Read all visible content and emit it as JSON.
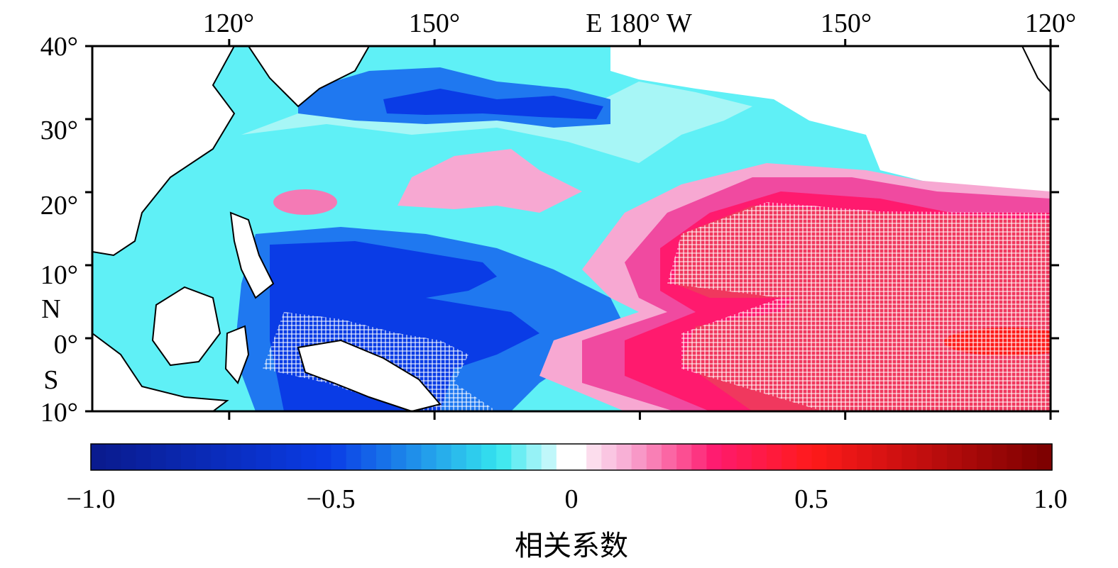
{
  "map": {
    "top_lon_labels": [
      "120°",
      "150°",
      "E 180° W",
      "150°",
      "120°"
    ],
    "lat_labels": [
      "40°",
      "30°",
      "20°",
      "10°",
      "0°",
      "10°"
    ],
    "hemisphere_north": "N",
    "hemisphere_south": "S",
    "lon_range_deg_east": [
      100,
      240
    ],
    "lat_range": [
      -10,
      40
    ],
    "significance_marker": "+"
  },
  "colorbar": {
    "tick_labels": [
      "−1.0",
      "−0.5",
      "0",
      "0.5",
      "1.0"
    ],
    "tick_values": [
      -1.0,
      -0.5,
      0,
      0.5,
      1.0
    ],
    "range": [
      -1.0,
      1.0
    ],
    "title": "相关系数",
    "colors": {
      "min": "#0a1a8c",
      "neg_mid": "#0a3ce6",
      "neg_light": "#35e6ee",
      "zero": "#ffffff",
      "pos_light": "#f7a8d2",
      "pos_mid": "#ff1a6e",
      "pos_strong": "#ff1a1a",
      "max": "#7a0000"
    }
  },
  "colors": {
    "land": "#ffffff",
    "coast": "#000000",
    "hatch": "#ffffff"
  }
}
